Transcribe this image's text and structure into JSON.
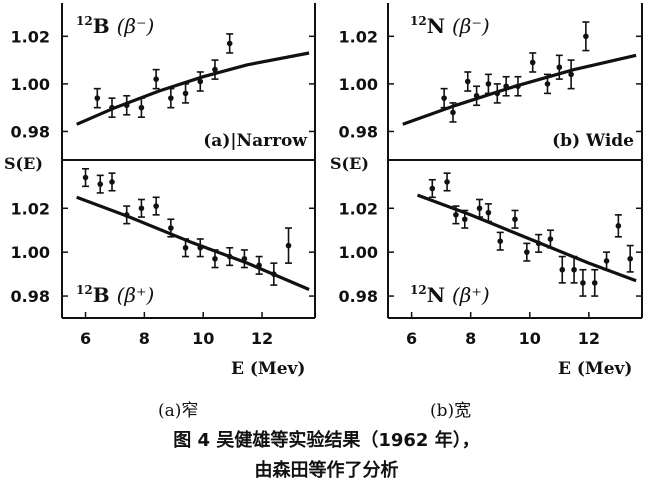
{
  "figure": {
    "sub_a": "(a)窄",
    "sub_b": "(b)宽",
    "caption_line1": "图 4 吴健雄等实验结果（1962 年），",
    "caption_line2": "由森田等作了分析"
  },
  "chart_data": [
    {
      "id": "b12-minus",
      "type": "scatter",
      "panel": "a",
      "isotope_sup": "12",
      "isotope": "B",
      "decay_label": "(β⁻)",
      "annotation": "(a)|Narrow",
      "xlim": [
        5.2,
        13.8
      ],
      "ylim": [
        0.968,
        1.034
      ],
      "ylabel": "S(E)",
      "yticks": [
        "1.02",
        "1.00",
        "0.98"
      ],
      "x": [
        6.4,
        6.9,
        7.4,
        7.9,
        8.4,
        8.9,
        9.4,
        9.9,
        10.4,
        10.9
      ],
      "y": [
        0.994,
        0.99,
        0.991,
        0.99,
        1.002,
        0.994,
        0.996,
        1.001,
        1.006,
        1.017
      ],
      "err": [
        0.004,
        0.004,
        0.004,
        0.004,
        0.004,
        0.004,
        0.004,
        0.004,
        0.004,
        0.004
      ],
      "curve": {
        "x": [
          5.7,
          7.0,
          8.5,
          10.0,
          11.5,
          13.6
        ],
        "y": [
          0.983,
          0.99,
          0.997,
          1.003,
          1.008,
          1.013
        ]
      }
    },
    {
      "id": "b12-plus",
      "type": "scatter",
      "panel": "a",
      "isotope_sup": "12",
      "isotope": "B",
      "decay_label": "(β⁺)",
      "xlim": [
        5.2,
        13.8
      ],
      "ylim": [
        0.97,
        1.042
      ],
      "xlabel": "E (Mev)",
      "ylabel": "S(E)",
      "xticks": [
        "6",
        "8",
        "10",
        "12"
      ],
      "yticks": [
        "1.02",
        "1.00",
        "0.98"
      ],
      "x": [
        6.0,
        6.5,
        6.9,
        7.4,
        7.9,
        8.4,
        8.9,
        9.4,
        9.9,
        10.4,
        10.9,
        11.4,
        11.9,
        12.4,
        12.9
      ],
      "y": [
        1.034,
        1.031,
        1.032,
        1.017,
        1.02,
        1.021,
        1.011,
        1.002,
        1.002,
        0.997,
        0.998,
        0.997,
        0.994,
        0.99,
        1.003
      ],
      "err": [
        0.004,
        0.004,
        0.004,
        0.004,
        0.004,
        0.004,
        0.004,
        0.004,
        0.004,
        0.004,
        0.004,
        0.004,
        0.004,
        0.005,
        0.008
      ],
      "curve": {
        "x": [
          5.7,
          7.5,
          9.5,
          11.5,
          13.6
        ],
        "y": [
          1.025,
          1.016,
          1.005,
          0.995,
          0.983
        ]
      }
    },
    {
      "id": "n12-minus",
      "type": "scatter",
      "panel": "b",
      "isotope_sup": "12",
      "isotope": "N",
      "decay_label": "(β⁻)",
      "annotation": "(b) Wide",
      "xlim": [
        5.2,
        13.8
      ],
      "ylim": [
        0.968,
        1.034
      ],
      "ylabel": "S(E)",
      "yticks": [
        "1.02",
        "1.00",
        "0.98"
      ],
      "x": [
        7.1,
        7.4,
        7.9,
        8.2,
        8.6,
        8.9,
        9.2,
        9.6,
        10.1,
        10.6,
        11.0,
        11.4,
        11.9
      ],
      "y": [
        0.994,
        0.988,
        1.001,
        0.995,
        1.0,
        0.996,
        0.999,
        0.999,
        1.009,
        1.0,
        1.007,
        1.004,
        1.02
      ],
      "err": [
        0.004,
        0.004,
        0.004,
        0.004,
        0.004,
        0.004,
        0.004,
        0.004,
        0.004,
        0.004,
        0.005,
        0.006,
        0.006
      ],
      "curve": {
        "x": [
          5.7,
          7.5,
          9.5,
          11.5,
          13.6
        ],
        "y": [
          0.983,
          0.991,
          0.999,
          1.006,
          1.012
        ]
      }
    },
    {
      "id": "n12-plus",
      "type": "scatter",
      "panel": "b",
      "isotope_sup": "12",
      "isotope": "N",
      "decay_label": "(β⁺)",
      "xlim": [
        5.2,
        13.8
      ],
      "ylim": [
        0.97,
        1.042
      ],
      "xlabel": "E (Mev)",
      "ylabel": "S(E)",
      "xticks": [
        "6",
        "8",
        "10",
        "12"
      ],
      "yticks": [
        "1.02",
        "1.00",
        "0.98"
      ],
      "x": [
        6.7,
        7.2,
        7.5,
        7.8,
        8.3,
        8.6,
        9.0,
        9.5,
        9.9,
        10.3,
        10.7,
        11.1,
        11.5,
        11.8,
        12.2,
        12.6,
        13.0,
        13.4
      ],
      "y": [
        1.029,
        1.032,
        1.017,
        1.015,
        1.02,
        1.018,
        1.005,
        1.015,
        1.0,
        1.004,
        1.006,
        0.992,
        0.992,
        0.986,
        0.986,
        0.996,
        1.012,
        0.997
      ],
      "err": [
        0.004,
        0.004,
        0.004,
        0.004,
        0.004,
        0.004,
        0.004,
        0.004,
        0.004,
        0.004,
        0.004,
        0.006,
        0.006,
        0.006,
        0.006,
        0.004,
        0.005,
        0.006
      ],
      "curve": {
        "x": [
          6.2,
          8.0,
          10.0,
          12.0,
          13.6
        ],
        "y": [
          1.026,
          1.017,
          1.006,
          0.995,
          0.987
        ]
      }
    }
  ]
}
